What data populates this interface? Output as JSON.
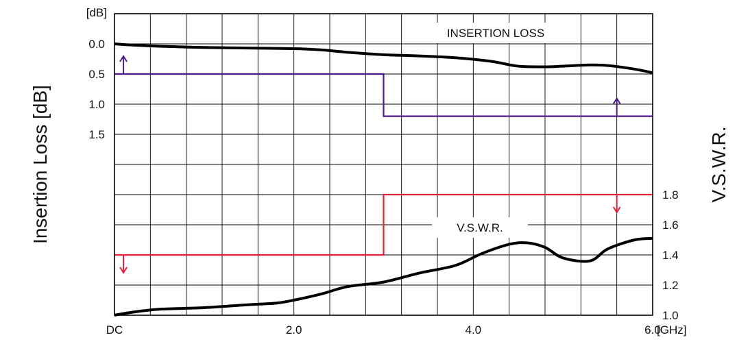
{
  "chart_data": {
    "type": "line",
    "x_unit": "[GHz]",
    "x_ticks": [
      {
        "value": 0,
        "label": "DC"
      },
      {
        "value": 2,
        "label": "2.0"
      },
      {
        "value": 4,
        "label": "4.0"
      },
      {
        "value": 6,
        "label": "6.0"
      }
    ],
    "xlim": [
      0,
      6
    ],
    "left_axis": {
      "label": "Insertion Loss [dB]",
      "unit": "[dB]",
      "ticks": [
        "0.0",
        "0.5",
        "1.0",
        "1.5"
      ],
      "tick_values": [
        0.0,
        0.5,
        1.0,
        1.5
      ],
      "ylim": [
        0,
        4.5
      ],
      "inverted": true
    },
    "right_axis": {
      "label": "V.S.W.R.",
      "ticks": [
        "1.0",
        "1.2",
        "1.4",
        "1.6",
        "1.8"
      ],
      "tick_values": [
        1.0,
        1.2,
        1.4,
        1.6,
        1.8
      ],
      "ylim": [
        1.0,
        2.8
      ]
    },
    "grid": true,
    "series": [
      {
        "name": "INSERTION LOSS",
        "axis": "left",
        "color": "#000000",
        "x": [
          0,
          0.2,
          0.5,
          1.0,
          1.5,
          2.0,
          2.3,
          2.6,
          3.0,
          3.4,
          3.8,
          4.2,
          4.5,
          4.8,
          5.0,
          5.3,
          5.5,
          5.8,
          6.0
        ],
        "y": [
          0.0,
          0.02,
          0.04,
          0.06,
          0.07,
          0.08,
          0.1,
          0.14,
          0.18,
          0.2,
          0.23,
          0.29,
          0.37,
          0.38,
          0.37,
          0.35,
          0.36,
          0.42,
          0.48
        ]
      },
      {
        "name": "V.S.W.R.",
        "axis": "right",
        "color": "#000000",
        "x": [
          0,
          0.2,
          0.5,
          1.0,
          1.5,
          1.8,
          2.0,
          2.3,
          2.6,
          3.0,
          3.4,
          3.8,
          4.1,
          4.4,
          4.6,
          4.8,
          5.0,
          5.3,
          5.5,
          5.8,
          6.0
        ],
        "y": [
          1.0,
          1.02,
          1.04,
          1.05,
          1.07,
          1.08,
          1.1,
          1.14,
          1.19,
          1.22,
          1.28,
          1.33,
          1.41,
          1.47,
          1.48,
          1.45,
          1.38,
          1.36,
          1.44,
          1.5,
          1.51
        ]
      }
    ],
    "limits": [
      {
        "type": "insertion_loss_spec",
        "axis": "left",
        "color": "#4b1a8c",
        "segments": [
          {
            "x0": 0,
            "x1": 3,
            "y": 0.5
          },
          {
            "x0": 3,
            "x1": 6,
            "y": 1.2
          }
        ]
      },
      {
        "type": "vswr_spec",
        "axis": "right",
        "color": "#e0203a",
        "segments": [
          {
            "x0": 0,
            "x1": 3,
            "y": 1.4
          },
          {
            "x0": 3,
            "x1": 6,
            "y": 1.8
          }
        ]
      }
    ]
  }
}
